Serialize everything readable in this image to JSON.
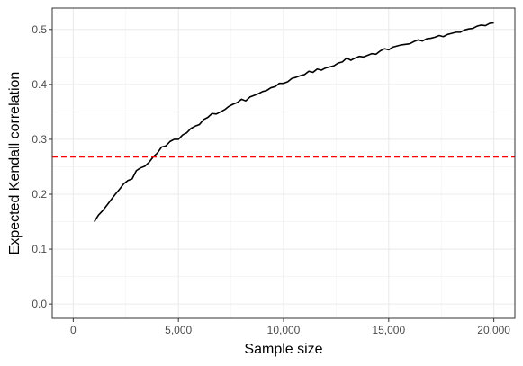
{
  "chart_data": {
    "type": "line",
    "title": "",
    "xlabel": "Sample size",
    "ylabel": "Expected Kendall correlation",
    "xlim": [
      -1000,
      21000
    ],
    "ylim": [
      -0.026,
      0.539
    ],
    "x_ticks": [
      0,
      5000,
      10000,
      15000,
      20000
    ],
    "x_tick_labels": [
      "0",
      "5,000",
      "10,000",
      "15,000",
      "20,000"
    ],
    "y_ticks": [
      0.0,
      0.1,
      0.2,
      0.3,
      0.4,
      0.5
    ],
    "y_tick_labels": [
      "0.0",
      "0.1",
      "0.2",
      "0.3",
      "0.4",
      "0.5"
    ],
    "grid": true,
    "series": [
      {
        "color": "#000000",
        "x": [
          1000,
          1200,
          1400,
          1600,
          1800,
          2000,
          2200,
          2400,
          2600,
          2800,
          3000,
          3200,
          3400,
          3600,
          3800,
          4000,
          4200,
          4400,
          4600,
          4800,
          5000,
          5200,
          5400,
          5600,
          5800,
          6000,
          6200,
          6400,
          6600,
          6800,
          7000,
          7200,
          7400,
          7600,
          7800,
          8000,
          8200,
          8400,
          8600,
          8800,
          9000,
          9200,
          9400,
          9600,
          9800,
          10000,
          10200,
          10400,
          10600,
          10800,
          11000,
          11200,
          11400,
          11600,
          11800,
          12000,
          12200,
          12400,
          12600,
          12800,
          13000,
          13200,
          13400,
          13600,
          13800,
          14000,
          14200,
          14400,
          14600,
          14800,
          15000,
          15200,
          15400,
          15600,
          15800,
          16000,
          16200,
          16400,
          16600,
          16800,
          17000,
          17200,
          17400,
          17600,
          17800,
          18000,
          18200,
          18400,
          18600,
          18800,
          19000,
          19200,
          19400,
          19600,
          19800,
          20000
        ],
        "y": [
          0.15,
          0.162,
          0.17,
          0.18,
          0.19,
          0.2,
          0.209,
          0.219,
          0.225,
          0.228,
          0.243,
          0.248,
          0.251,
          0.258,
          0.268,
          0.275,
          0.286,
          0.288,
          0.296,
          0.3,
          0.3,
          0.308,
          0.312,
          0.32,
          0.324,
          0.327,
          0.336,
          0.34,
          0.347,
          0.346,
          0.35,
          0.354,
          0.36,
          0.364,
          0.367,
          0.373,
          0.37,
          0.377,
          0.38,
          0.383,
          0.387,
          0.389,
          0.394,
          0.396,
          0.402,
          0.402,
          0.405,
          0.411,
          0.413,
          0.416,
          0.418,
          0.424,
          0.422,
          0.428,
          0.426,
          0.43,
          0.432,
          0.434,
          0.439,
          0.441,
          0.448,
          0.444,
          0.448,
          0.451,
          0.45,
          0.453,
          0.456,
          0.455,
          0.461,
          0.465,
          0.463,
          0.468,
          0.47,
          0.472,
          0.473,
          0.474,
          0.478,
          0.481,
          0.479,
          0.483,
          0.484,
          0.486,
          0.489,
          0.487,
          0.491,
          0.493,
          0.495,
          0.495,
          0.499,
          0.501,
          0.502,
          0.506,
          0.508,
          0.507,
          0.511,
          0.512
        ]
      },
      {
        "kind": "hline",
        "color": "#ff0000",
        "dash": true,
        "y": 0.268
      }
    ]
  }
}
